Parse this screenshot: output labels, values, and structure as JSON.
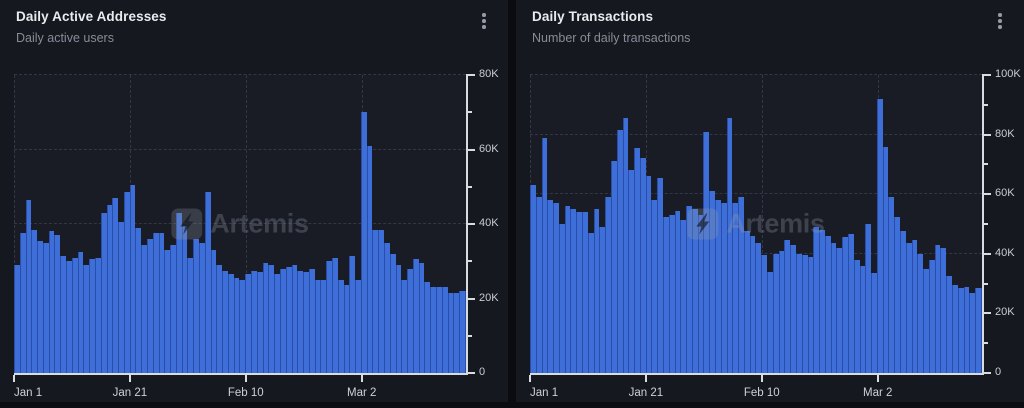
{
  "colors": {
    "page_bg": "#0a0c11",
    "panel_bg": "#15181f",
    "plot_bg": "#191c25",
    "bar_fill": "#3e6fd9",
    "bar_edge": "#2a4da8",
    "gridline": "#313746",
    "axis_line": "#d8dbe0",
    "title_text": "#e9ebef",
    "subtitle_text": "#868c98",
    "tick_label_text": "#caccd3"
  },
  "panels": [
    {
      "title": "Daily Active Addresses",
      "subtitle": "Daily active users",
      "menu_icon": "kebab-menu-icon",
      "watermark": "Artemis"
    },
    {
      "title": "Daily Transactions",
      "subtitle": "Number of daily transactions",
      "menu_icon": "kebab-menu-icon",
      "watermark": "Artemis"
    }
  ],
  "chart_data": [
    {
      "type": "bar",
      "title": "Daily Active Addresses",
      "xlabel": "",
      "ylabel": "",
      "x_range": [
        "Jan 1",
        "Mar 19"
      ],
      "x_tick_labels": [
        "Jan 1",
        "Jan 21",
        "Feb 10",
        "Mar 2"
      ],
      "x_tick_day_index": [
        0,
        20,
        40,
        60
      ],
      "y_tick_labels": [
        "0",
        "20K",
        "40K",
        "60K",
        "80K"
      ],
      "ylim": [
        0,
        80000
      ],
      "grid": true,
      "legend": false,
      "y_axis_side": "right",
      "values": [
        29000,
        37500,
        46500,
        38500,
        35500,
        35000,
        38000,
        37000,
        31500,
        30000,
        31000,
        32500,
        29000,
        30500,
        31000,
        43000,
        45000,
        47000,
        40500,
        48500,
        50500,
        39000,
        34500,
        36000,
        37500,
        37500,
        33000,
        34500,
        43000,
        39500,
        31000,
        36000,
        35000,
        48500,
        33000,
        29000,
        27500,
        26500,
        25500,
        25000,
        26500,
        27500,
        27000,
        29500,
        29000,
        26500,
        28000,
        28500,
        29000,
        27500,
        27000,
        28000,
        25000,
        25000,
        30000,
        31000,
        25000,
        23500,
        31500,
        25000,
        70000,
        61000,
        38500,
        38500,
        35000,
        32000,
        29000,
        25000,
        28000,
        30500,
        29500,
        24500,
        23000,
        23000,
        23000,
        21500,
        21500,
        22000
      ]
    },
    {
      "type": "bar",
      "title": "Daily Transactions",
      "xlabel": "",
      "ylabel": "",
      "x_range": [
        "Jan 1",
        "Mar 19"
      ],
      "x_tick_labels": [
        "Jan 1",
        "Jan 21",
        "Feb 10",
        "Mar 2"
      ],
      "x_tick_day_index": [
        0,
        20,
        40,
        60
      ],
      "y_tick_labels": [
        "0",
        "20K",
        "40K",
        "60K",
        "80K",
        "100K"
      ],
      "ylim": [
        0,
        100000
      ],
      "grid": true,
      "legend": false,
      "y_axis_side": "right",
      "values": [
        63000,
        59000,
        79000,
        58000,
        57000,
        50000,
        56000,
        55000,
        54000,
        54000,
        47000,
        55000,
        49000,
        59000,
        71000,
        81500,
        85500,
        68000,
        75500,
        72000,
        66000,
        58000,
        65500,
        52500,
        53000,
        54500,
        51500,
        56000,
        55000,
        53000,
        81000,
        61000,
        58000,
        57000,
        85500,
        57000,
        59000,
        47500,
        46000,
        43500,
        39500,
        34000,
        40000,
        41000,
        44500,
        43000,
        40000,
        39500,
        39000,
        49000,
        48000,
        46000,
        43500,
        42000,
        45500,
        46500,
        38000,
        36000,
        50000,
        33500,
        92000,
        76000,
        59000,
        52500,
        47500,
        43500,
        44500,
        40000,
        35000,
        38000,
        43000,
        42000,
        32500,
        29500,
        28500,
        29000,
        27000,
        28500
      ]
    }
  ]
}
